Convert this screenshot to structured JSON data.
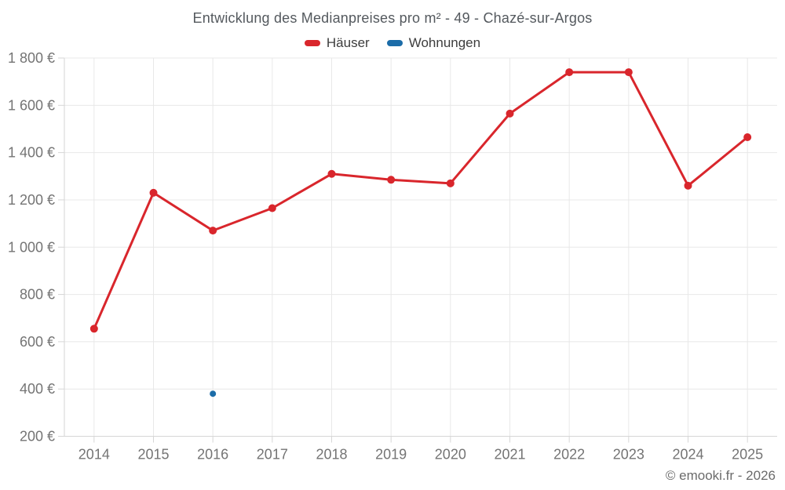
{
  "copyright": "© emooki.fr - 2026",
  "chart_data": {
    "type": "line",
    "title": "Entwicklung des Medianpreises pro m² - 49 - Chazé-sur-Argos",
    "xlabel": "",
    "ylabel": "",
    "categories": [
      "2014",
      "2015",
      "2016",
      "2017",
      "2018",
      "2019",
      "2020",
      "2021",
      "2022",
      "2023",
      "2024",
      "2025"
    ],
    "series": [
      {
        "name": "Häuser",
        "slug": "haeuser",
        "color": "#d9262c",
        "marker_radius": 5,
        "values": [
          655,
          1230,
          1070,
          1165,
          1310,
          1285,
          1270,
          1565,
          1740,
          1740,
          1260,
          1465
        ]
      },
      {
        "name": "Wohnungen",
        "slug": "wohnungen",
        "color": "#1b6ca8",
        "marker_radius": 4,
        "values": [
          null,
          null,
          380,
          null,
          null,
          null,
          null,
          null,
          null,
          null,
          null,
          null
        ]
      }
    ],
    "y_axis": {
      "min": 200,
      "max": 1800,
      "step": 200,
      "tick_labels": [
        "200 €",
        "400 €",
        "600 €",
        "800 €",
        "1 000 €",
        "1 200 €",
        "1 400 €",
        "1 600 €",
        "1 800 €"
      ],
      "unit": "€"
    },
    "grid": true,
    "legend_position": "top"
  }
}
